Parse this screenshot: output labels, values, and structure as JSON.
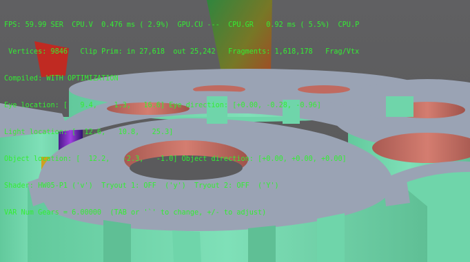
{
  "hud": {
    "lines": [
      "FPS: 59.99 SER  CPU.V  0.476 ms ( 2.9%)  GPU.CU ---  CPU.GR   0.92 ms ( 5.5%)  CPU.P",
      " Vertices: 9846   Clip Prim: in 27,618  out 25,242   Fragments: 1,618,178   Frag/Vtx",
      "Compiled: WITH OPTIMIZATION",
      "Eye location: [   9.4,    1.3,   16.6] Eye direction: [+0.00, -0.28, -0.96]",
      "Light location: [  12.6,   10.8,   25.3]",
      "Object location: [  12.2,   -2.3,   -1.0] Object direction: [+0.00, +0.00, +0.00]",
      "Shader: HW05-P1 ('v')  Tryout 1: OFF  ('y')  Tryout 2: OFF  ('Y')",
      "VAR Num Gears = 6.00000  (TAB or '`' to change, +/- to adjust)"
    ]
  },
  "colors": {
    "hud_text": "#33ee33",
    "background": "#5b5b5d",
    "gear_face": "#9aa3b4",
    "gear_teeth": "#6fd5aa",
    "gear_inner": "#c06a60"
  },
  "scene": {
    "gear_count_shown": 6
  }
}
